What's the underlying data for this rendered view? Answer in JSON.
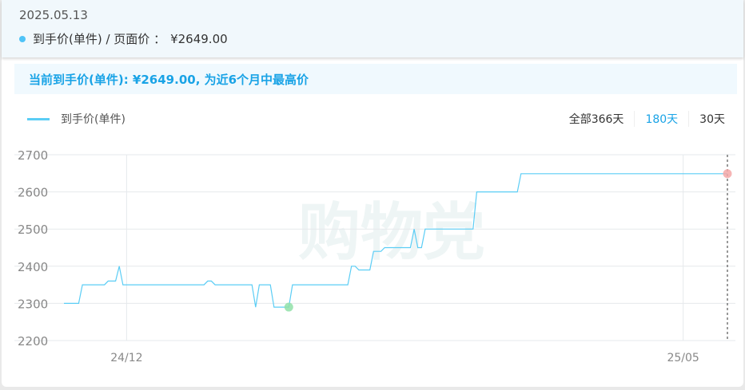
{
  "tooltip": {
    "date": "2025.05.13",
    "label": "到手价(单件) / 页面价 ：",
    "value": "¥2649.00"
  },
  "banner": "当前到手价(单件): ¥2649.00, 为近6个月中最高价",
  "legend": {
    "label": "到手价(单件)"
  },
  "tabs": [
    {
      "label": "全部366天",
      "active": false
    },
    {
      "label": "180天",
      "active": true
    },
    {
      "label": "30天",
      "active": false
    }
  ],
  "watermark": "购物党",
  "colors": {
    "line": "#5bcdf5",
    "accent": "#19a3e6",
    "min_marker": "#90e0a8",
    "max_marker": "#f4a8a8"
  },
  "chart_data": {
    "type": "line",
    "xlabel": "",
    "ylabel": "",
    "ylim": [
      2200,
      2700
    ],
    "yticks": [
      "2200",
      "2300",
      "2400",
      "2500",
      "2600",
      "2700"
    ],
    "xticks": [
      {
        "label": "24/12",
        "date": "2024-12-01"
      },
      {
        "label": "25/05",
        "date": "2025-05-01"
      }
    ],
    "xlim": [
      "2024-11-14",
      "2025-05-13"
    ],
    "grid": true,
    "series": [
      {
        "name": "到手价(单件)",
        "points": [
          [
            "2024-11-14",
            2300
          ],
          [
            "2024-11-18",
            2300
          ],
          [
            "2024-11-19",
            2350
          ],
          [
            "2024-11-25",
            2350
          ],
          [
            "2024-11-26",
            2360
          ],
          [
            "2024-11-28",
            2360
          ],
          [
            "2024-11-29",
            2400
          ],
          [
            "2024-11-30",
            2350
          ],
          [
            "2024-12-22",
            2350
          ],
          [
            "2024-12-23",
            2360
          ],
          [
            "2024-12-24",
            2360
          ],
          [
            "2024-12-25",
            2350
          ],
          [
            "2025-01-04",
            2350
          ],
          [
            "2025-01-05",
            2290
          ],
          [
            "2025-01-06",
            2350
          ],
          [
            "2025-01-09",
            2350
          ],
          [
            "2025-01-10",
            2290
          ],
          [
            "2025-01-14",
            2290
          ],
          [
            "2025-01-15",
            2350
          ],
          [
            "2025-01-30",
            2350
          ],
          [
            "2025-01-31",
            2400
          ],
          [
            "2025-02-01",
            2400
          ],
          [
            "2025-02-02",
            2390
          ],
          [
            "2025-02-05",
            2390
          ],
          [
            "2025-02-06",
            2440
          ],
          [
            "2025-02-08",
            2440
          ],
          [
            "2025-02-09",
            2450
          ],
          [
            "2025-02-16",
            2450
          ],
          [
            "2025-02-17",
            2500
          ],
          [
            "2025-02-18",
            2450
          ],
          [
            "2025-02-19",
            2450
          ],
          [
            "2025-02-20",
            2500
          ],
          [
            "2025-03-05",
            2500
          ],
          [
            "2025-03-06",
            2600
          ],
          [
            "2025-03-17",
            2600
          ],
          [
            "2025-03-18",
            2649
          ],
          [
            "2025-05-13",
            2649
          ]
        ]
      }
    ],
    "markers": [
      {
        "type": "min",
        "date": "2025-01-14",
        "value": 2290
      },
      {
        "type": "max",
        "date": "2025-05-13",
        "value": 2649
      }
    ],
    "crosshair_date": "2025-05-13"
  }
}
